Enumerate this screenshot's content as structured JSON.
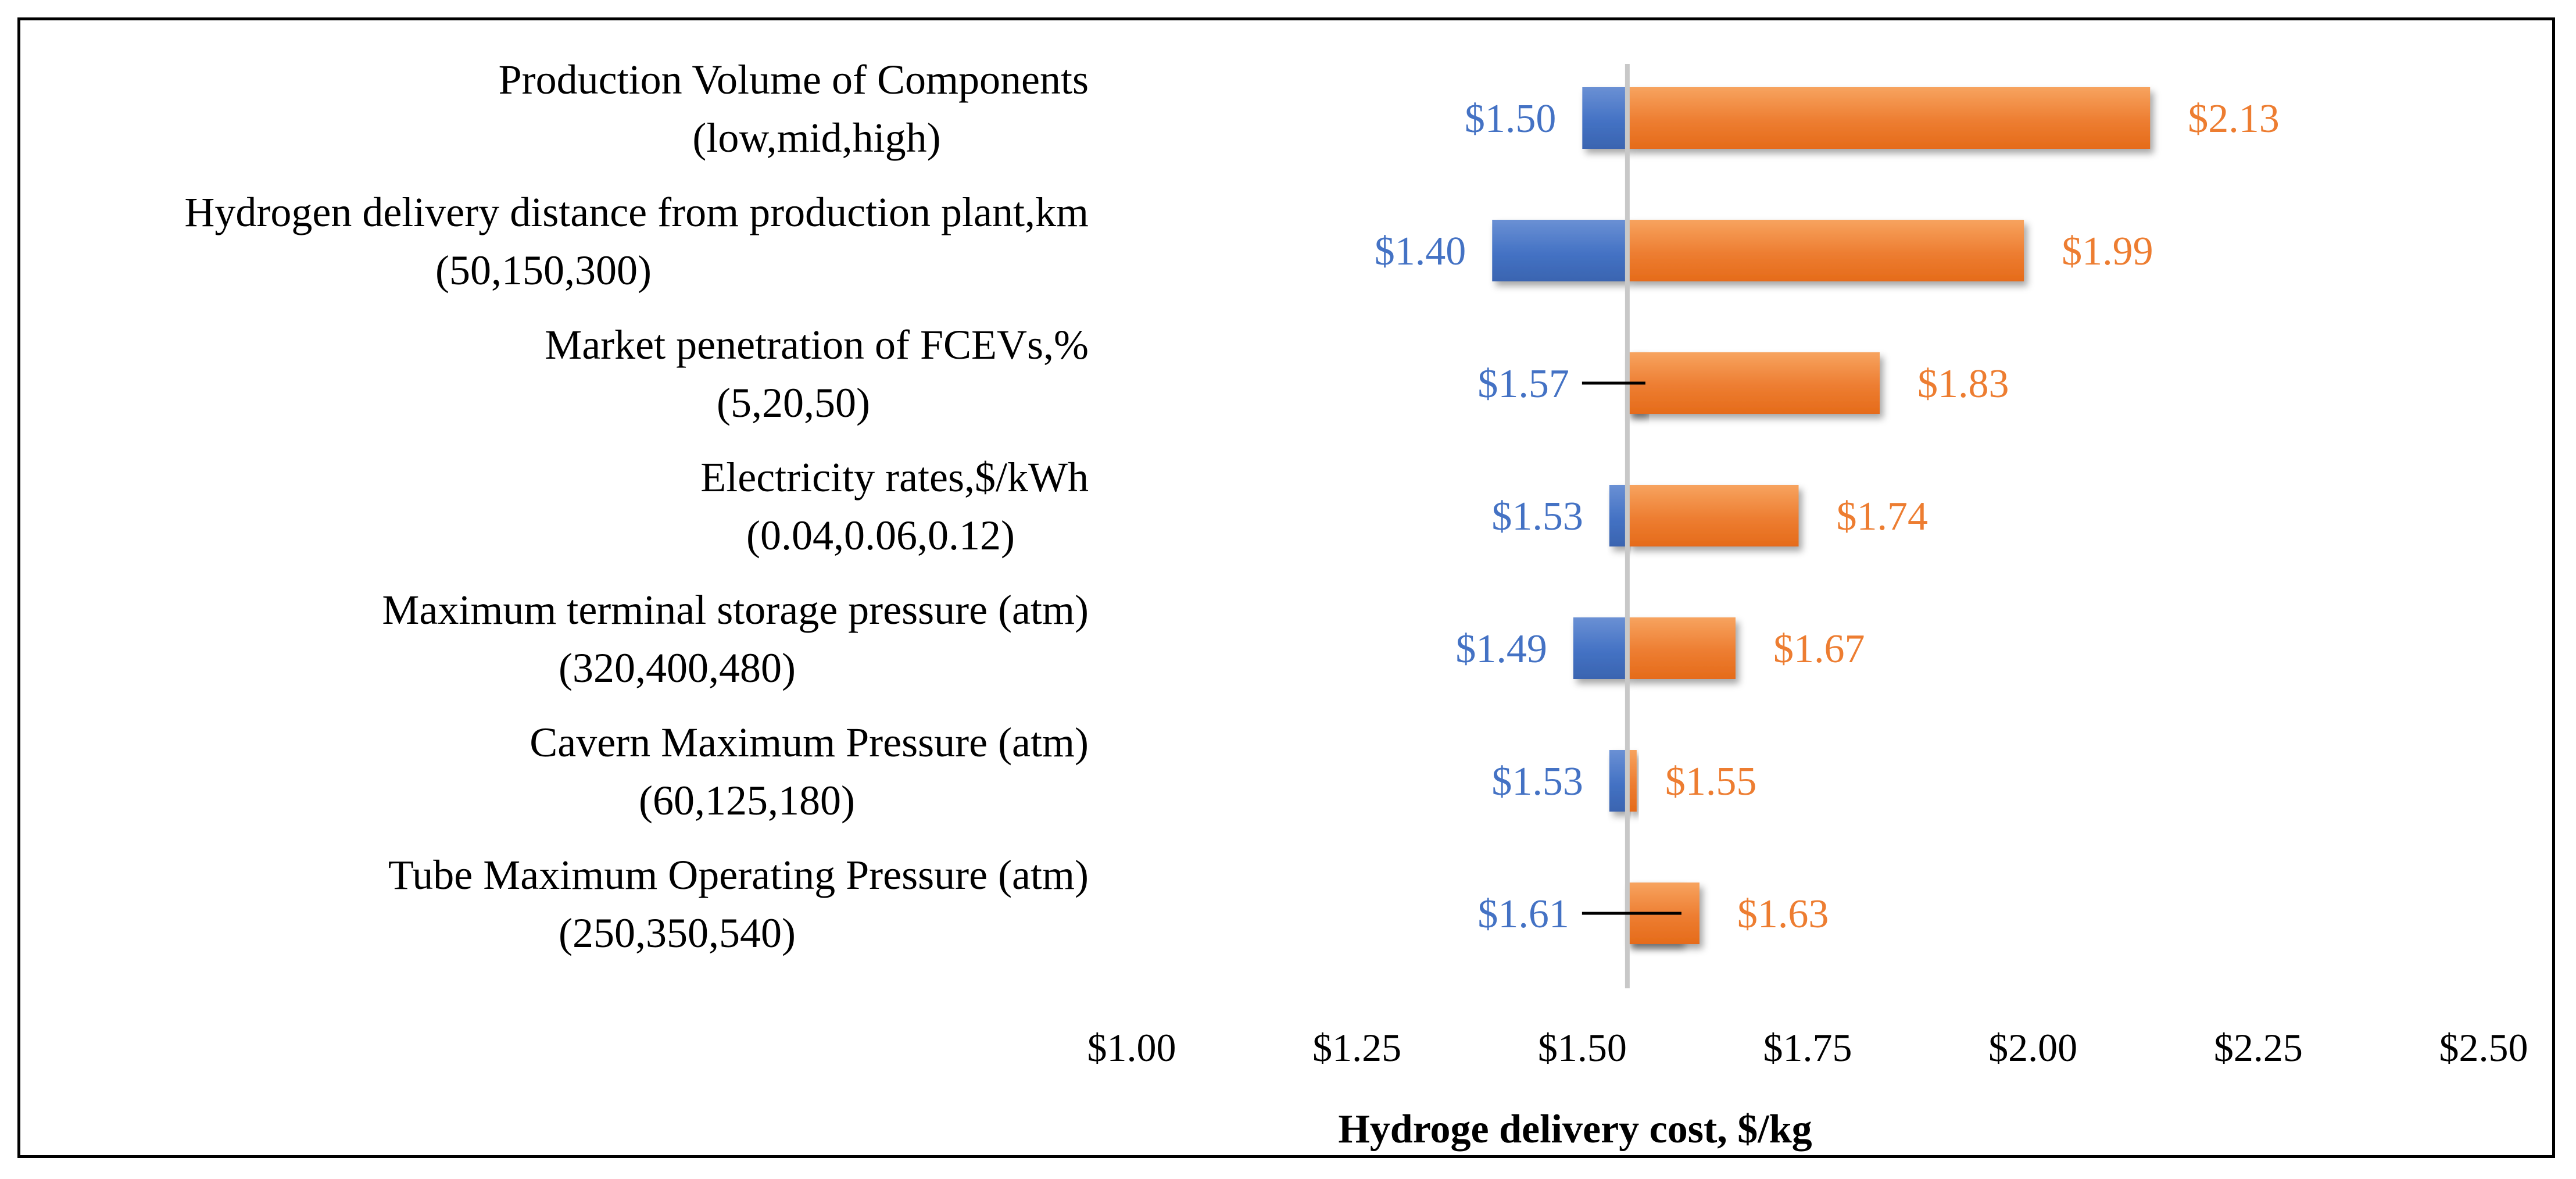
{
  "chart_data": {
    "type": "bar",
    "orientation": "horizontal-tornado",
    "base_value": 1.55,
    "categories": [
      [
        "Production Volume of Components",
        "(low,mid,high)"
      ],
      [
        "Hydrogen delivery distance from production plant,km",
        "(50,150,300)"
      ],
      [
        "Market penetration of FCEVs,%",
        "(5,20,50)"
      ],
      [
        "Electricity rates,$/kWh",
        "(0.04,0.06,0.12)"
      ],
      [
        "Maximum terminal storage pressure (atm)",
        "(320,400,480)"
      ],
      [
        "Cavern Maximum Pressure (atm)",
        "(60,125,180)"
      ],
      [
        "Tube Maximum Operating Pressure (atm)",
        "(250,350,540)"
      ]
    ],
    "series": [
      {
        "values": [
          1.5,
          1.4,
          1.57,
          1.53,
          1.49,
          1.53,
          1.61
        ],
        "labels": [
          "$1.50",
          "$1.40",
          "$1.57",
          "$1.53",
          "$1.49",
          "$1.53",
          "$1.61"
        ]
      },
      {
        "values": [
          2.13,
          1.99,
          1.83,
          1.74,
          1.67,
          1.55,
          1.63
        ],
        "labels": [
          "$2.13",
          "$1.99",
          "$1.83",
          "$1.74",
          "$1.67",
          "$1.55",
          "$1.63"
        ]
      }
    ],
    "xlim": [
      1.0,
      2.5
    ],
    "xticks": [
      "$1.00",
      "$1.25",
      "$1.50",
      "$1.75",
      "$2.00",
      "$2.25",
      "$2.50"
    ],
    "xlabel": "Hydroge delivery cost, $/kg",
    "ylabel": "",
    "title": "",
    "grid": false,
    "legend": "none",
    "colors": {
      "low": "#4472c4",
      "high": "#ed7d31",
      "base_line": "#c8c8c8"
    }
  }
}
